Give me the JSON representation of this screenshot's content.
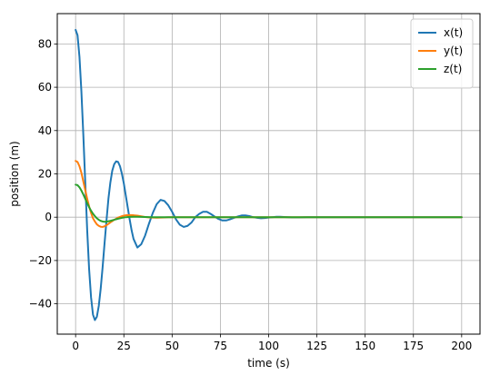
{
  "chart_data": {
    "type": "line",
    "title": "",
    "xlabel": "time (s)",
    "ylabel": "position (m)",
    "xlim": [
      -9.5,
      209.5
    ],
    "ylim": [
      -54,
      94
    ],
    "xticks": [
      0,
      25,
      50,
      75,
      100,
      125,
      150,
      175,
      200
    ],
    "yticks": [
      -40,
      -20,
      0,
      20,
      40,
      60,
      80
    ],
    "grid": true,
    "legend_position": "top-right",
    "series": [
      {
        "name": "x(t)",
        "color": "#1f77b4",
        "x": [
          0,
          1,
          2,
          3,
          4,
          5,
          6,
          7,
          8,
          9,
          10,
          11,
          12,
          13,
          14,
          15,
          16,
          17,
          18,
          19,
          20,
          21,
          22,
          23,
          24,
          25,
          26,
          27,
          28,
          29,
          30,
          32,
          34,
          36,
          38,
          40,
          42,
          44,
          46,
          48,
          50,
          52,
          54,
          56,
          58,
          60,
          62,
          64,
          66,
          68,
          70,
          72,
          74,
          76,
          78,
          80,
          82,
          84,
          86,
          88,
          90,
          92,
          94,
          96,
          98,
          100,
          102,
          104,
          106,
          108,
          110,
          112,
          116,
          120,
          124,
          128,
          132,
          136,
          140,
          150,
          160,
          170,
          180,
          190,
          200
        ],
        "y": [
          86.5,
          84,
          74,
          58,
          38,
          16,
          -6,
          -24,
          -37,
          -45,
          -47.5,
          -46,
          -41,
          -33,
          -23,
          -12,
          -1.5,
          8.5,
          16,
          21.5,
          24.5,
          25.8,
          25.5,
          23.5,
          20,
          15.5,
          10,
          4.5,
          -1,
          -6,
          -10,
          -14,
          -12.5,
          -8.5,
          -3,
          2,
          6,
          8,
          7.5,
          5.5,
          2.5,
          -1,
          -3.5,
          -4.5,
          -4,
          -2.5,
          0,
          1.5,
          2.5,
          2.5,
          1.5,
          0.3,
          -0.8,
          -1.5,
          -1.5,
          -1,
          -0.3,
          0.3,
          0.8,
          0.8,
          0.5,
          0,
          -0.3,
          -0.5,
          -0.4,
          -0.2,
          0,
          0.2,
          0.2,
          0.1,
          0,
          -0.1,
          -0.1,
          0,
          0,
          0,
          0,
          0,
          0,
          0,
          0,
          0,
          0,
          0,
          0
        ]
      },
      {
        "name": "y(t)",
        "color": "#ff7f0e",
        "x": [
          0,
          1,
          2,
          3,
          4,
          5,
          6,
          7,
          8,
          9,
          10,
          11,
          12,
          13,
          14,
          15,
          16,
          17,
          18,
          19,
          20,
          22,
          24,
          26,
          28,
          30,
          32,
          34,
          36,
          38,
          40,
          42,
          44,
          46,
          48,
          50,
          55,
          60,
          70,
          80,
          100,
          150,
          200
        ],
        "y": [
          26,
          25.5,
          23.5,
          20.5,
          16.5,
          12.5,
          8.5,
          5,
          2,
          -0.5,
          -2,
          -3.3,
          -4,
          -4.4,
          -4.5,
          -4.2,
          -3.7,
          -3.1,
          -2.4,
          -1.8,
          -1.2,
          -0.2,
          0.5,
          0.9,
          1,
          0.9,
          0.7,
          0.4,
          0.1,
          -0.1,
          -0.2,
          -0.25,
          -0.2,
          -0.1,
          0,
          0,
          0,
          0,
          0,
          0,
          0,
          0,
          0
        ]
      },
      {
        "name": "z(t)",
        "color": "#2ca02c",
        "x": [
          0,
          1,
          2,
          3,
          4,
          5,
          6,
          7,
          8,
          9,
          10,
          11,
          12,
          13,
          14,
          15,
          16,
          18,
          20,
          22,
          24,
          26,
          28,
          30,
          32,
          34,
          36,
          40,
          45,
          50,
          60,
          80,
          100,
          150,
          200
        ],
        "y": [
          15,
          14.8,
          13.8,
          12.3,
          10.5,
          8.5,
          6.5,
          4.6,
          3,
          1.6,
          0.5,
          -0.5,
          -1.2,
          -1.7,
          -2,
          -2.1,
          -2.05,
          -1.7,
          -1.2,
          -0.7,
          -0.3,
          0,
          0.15,
          0.2,
          0.2,
          0.15,
          0.1,
          0,
          0,
          0,
          0,
          0,
          0,
          0,
          0
        ]
      }
    ]
  }
}
